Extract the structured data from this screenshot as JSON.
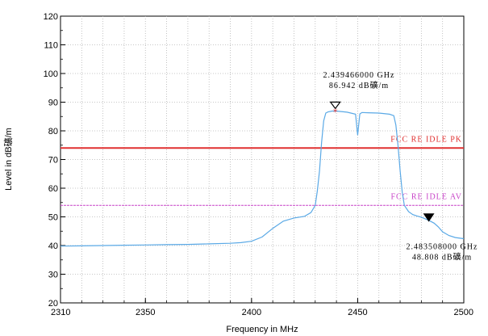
{
  "chart_data": {
    "type": "line",
    "xlabel": "Frequency in MHz",
    "ylabel": "Level in dB礦/m",
    "xlim": [
      2310,
      2500
    ],
    "ylim": [
      20,
      120
    ],
    "x_ticks": [
      2310,
      2350,
      2400,
      2450,
      2500
    ],
    "y_ticks": [
      20,
      30,
      40,
      50,
      60,
      70,
      80,
      90,
      100,
      110,
      120
    ],
    "grid": true,
    "series": [
      {
        "color": "#5aa9e6",
        "x": [
          2310,
          2320,
          2330,
          2340,
          2350,
          2360,
          2370,
          2380,
          2390,
          2395,
          2400,
          2405,
          2410,
          2415,
          2420,
          2425,
          2428,
          2430,
          2431,
          2432,
          2433,
          2434,
          2435,
          2436,
          2438,
          2440,
          2445,
          2449,
          2450,
          2451,
          2452,
          2455,
          2460,
          2465,
          2467,
          2468,
          2469,
          2470,
          2471,
          2472,
          2474,
          2476,
          2478,
          2480,
          2483.5,
          2486,
          2488,
          2490,
          2493,
          2496,
          2500
        ],
        "y": [
          39.8,
          39.9,
          40.0,
          40.1,
          40.2,
          40.3,
          40.4,
          40.6,
          40.8,
          41.0,
          41.5,
          43.0,
          46.0,
          48.5,
          49.6,
          50.2,
          51.5,
          54.0,
          59.0,
          66.0,
          76.0,
          83.5,
          86.2,
          86.6,
          86.9,
          86.9,
          86.5,
          85.8,
          78.5,
          85.9,
          86.4,
          86.3,
          86.2,
          85.8,
          85.3,
          82.0,
          75.0,
          66.0,
          58.5,
          54.0,
          51.8,
          50.8,
          50.3,
          49.9,
          48.8,
          47.8,
          46.5,
          44.8,
          43.5,
          42.8,
          42.4
        ]
      }
    ],
    "limit_lines": [
      {
        "label": "FCC RE IDLE PK",
        "value": 74,
        "color": "#e03030"
      },
      {
        "label": "FCC RE IDLE AV",
        "value": 54,
        "color": "#c844c8"
      }
    ],
    "markers": [
      {
        "x": 2439.466,
        "y": 86.942,
        "style": "open-triangle",
        "line1": "2.439466000 GHz",
        "line2": "86.942 dB礦/m"
      },
      {
        "x": 2483.508,
        "y": 48.808,
        "style": "filled-triangle",
        "line1": "2.483508000 GHz",
        "line2": "48.808 dB礦/m"
      }
    ]
  }
}
